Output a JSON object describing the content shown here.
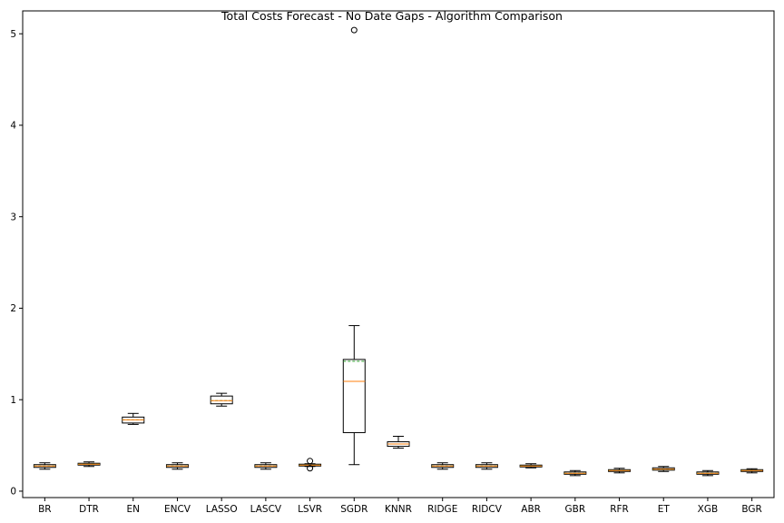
{
  "chart_data": {
    "type": "box",
    "title": "Total Costs Forecast - No Date Gaps - Algorithm Comparison",
    "xlabel": "",
    "ylabel": "",
    "ylim": [
      -0.07,
      5.25
    ],
    "yticks": [
      0,
      1,
      2,
      3,
      4,
      5
    ],
    "grid": false,
    "median_color": "#ff7f0e",
    "mean_color": "#2ca02c",
    "categories": [
      "BR",
      "DTR",
      "EN",
      "ENCV",
      "LASSO",
      "LASCV",
      "LSVR",
      "SGDR",
      "KNNR",
      "RIDGE",
      "RIDCV",
      "ABR",
      "GBR",
      "RFR",
      "ET",
      "XGB",
      "BGR"
    ],
    "boxes": [
      {
        "label": "BR",
        "whislo": 0.24,
        "q1": 0.26,
        "med": 0.275,
        "mean": 0.275,
        "q3": 0.29,
        "whishi": 0.31,
        "fliers": []
      },
      {
        "label": "DTR",
        "whislo": 0.27,
        "q1": 0.285,
        "med": 0.295,
        "mean": 0.295,
        "q3": 0.305,
        "whishi": 0.32,
        "fliers": []
      },
      {
        "label": "EN",
        "whislo": 0.73,
        "q1": 0.745,
        "med": 0.78,
        "mean": 0.78,
        "q3": 0.81,
        "whishi": 0.85,
        "fliers": []
      },
      {
        "label": "ENCV",
        "whislo": 0.24,
        "q1": 0.26,
        "med": 0.275,
        "mean": 0.275,
        "q3": 0.29,
        "whishi": 0.31,
        "fliers": []
      },
      {
        "label": "LASSO",
        "whislo": 0.93,
        "q1": 0.955,
        "med": 0.99,
        "mean": 0.99,
        "q3": 1.04,
        "whishi": 1.07,
        "fliers": []
      },
      {
        "label": "LASCV",
        "whislo": 0.24,
        "q1": 0.26,
        "med": 0.275,
        "mean": 0.275,
        "q3": 0.29,
        "whishi": 0.31,
        "fliers": []
      },
      {
        "label": "LSVR",
        "whislo": 0.27,
        "q1": 0.275,
        "med": 0.285,
        "mean": 0.285,
        "q3": 0.295,
        "whishi": 0.3,
        "fliers": [
          0.25,
          0.33
        ]
      },
      {
        "label": "SGDR",
        "whislo": 0.29,
        "q1": 0.64,
        "med": 1.2,
        "mean": 1.42,
        "q3": 1.44,
        "whishi": 1.81,
        "fliers": [
          5.04
        ]
      },
      {
        "label": "KNNR",
        "whislo": 0.47,
        "q1": 0.49,
        "med": 0.515,
        "mean": 0.515,
        "q3": 0.54,
        "whishi": 0.6,
        "fliers": []
      },
      {
        "label": "RIDGE",
        "whislo": 0.24,
        "q1": 0.26,
        "med": 0.275,
        "mean": 0.275,
        "q3": 0.29,
        "whishi": 0.31,
        "fliers": []
      },
      {
        "label": "RIDCV",
        "whislo": 0.24,
        "q1": 0.26,
        "med": 0.275,
        "mean": 0.275,
        "q3": 0.29,
        "whishi": 0.31,
        "fliers": []
      },
      {
        "label": "ABR",
        "whislo": 0.255,
        "q1": 0.265,
        "med": 0.275,
        "mean": 0.275,
        "q3": 0.285,
        "whishi": 0.3,
        "fliers": []
      },
      {
        "label": "GBR",
        "whislo": 0.17,
        "q1": 0.185,
        "med": 0.195,
        "mean": 0.195,
        "q3": 0.21,
        "whishi": 0.225,
        "fliers": []
      },
      {
        "label": "RFR",
        "whislo": 0.2,
        "q1": 0.215,
        "med": 0.225,
        "mean": 0.225,
        "q3": 0.235,
        "whishi": 0.25,
        "fliers": []
      },
      {
        "label": "ET",
        "whislo": 0.215,
        "q1": 0.23,
        "med": 0.24,
        "mean": 0.24,
        "q3": 0.255,
        "whishi": 0.27,
        "fliers": []
      },
      {
        "label": "XGB",
        "whislo": 0.17,
        "q1": 0.185,
        "med": 0.195,
        "mean": 0.195,
        "q3": 0.21,
        "whishi": 0.225,
        "fliers": []
      },
      {
        "label": "BGR",
        "whislo": 0.2,
        "q1": 0.215,
        "med": 0.225,
        "mean": 0.225,
        "q3": 0.235,
        "whishi": 0.245,
        "fliers": []
      }
    ]
  }
}
